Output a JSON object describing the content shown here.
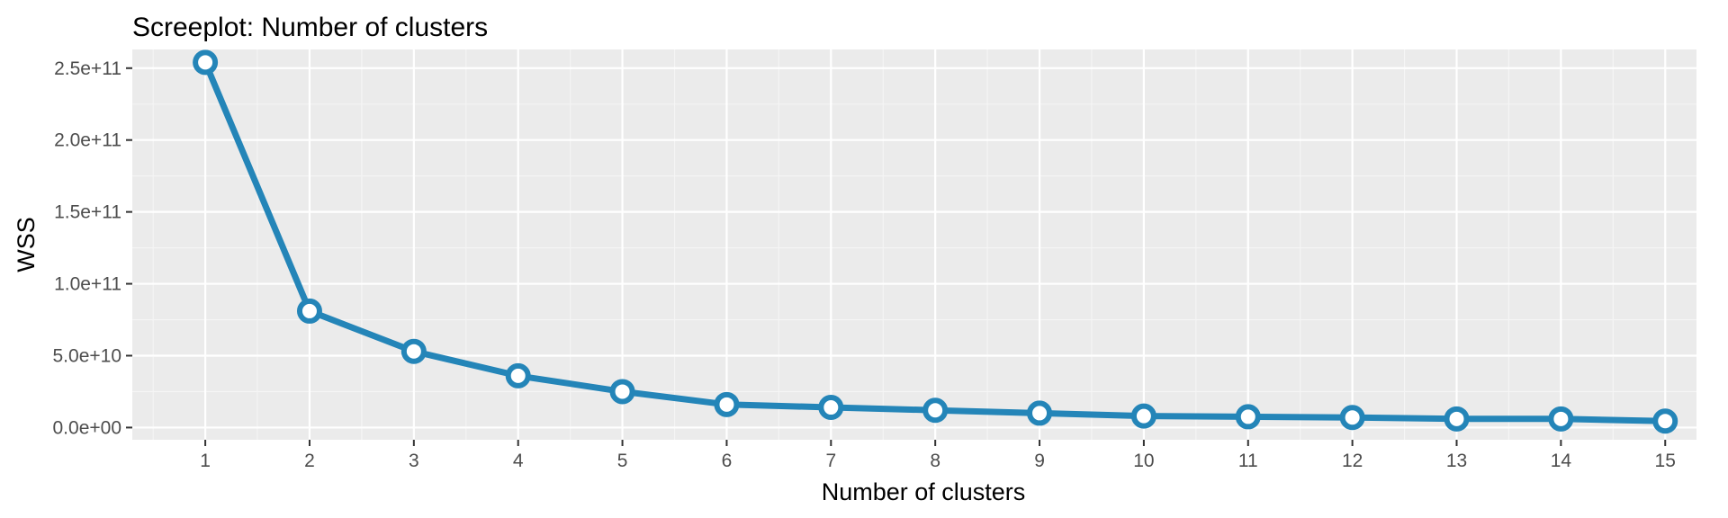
{
  "chart_data": {
    "type": "line",
    "title": "Screeplot: Number of clusters",
    "xlabel": "Number of clusters",
    "ylabel": "WSS",
    "x": [
      1,
      2,
      3,
      4,
      5,
      6,
      7,
      8,
      9,
      10,
      11,
      12,
      13,
      14,
      15
    ],
    "series": [
      {
        "values": [
          254000000000.0,
          81000000000.0,
          53000000000.0,
          36000000000.0,
          25000000000.0,
          16000000000.0,
          14000000000.0,
          12000000000.0,
          10000000000.0,
          8000000000.0,
          7500000000.0,
          7000000000.0,
          6000000000.0,
          6000000000.0,
          4500000000.0
        ]
      }
    ],
    "xlim": [
      0.3,
      15.3
    ],
    "ylim": [
      -8500000000.0,
      263000000000.0
    ],
    "x_ticks": [
      1,
      2,
      3,
      4,
      5,
      6,
      7,
      8,
      9,
      10,
      11,
      12,
      13,
      14,
      15
    ],
    "y_ticks": [
      0,
      50000000000.0,
      100000000000.0,
      150000000000.0,
      200000000000.0,
      250000000000.0
    ],
    "y_tick_labels": [
      "0.0e+00",
      "5.0e+10",
      "1.0e+11",
      "1.5e+11",
      "2.0e+11",
      "2.5e+11"
    ],
    "grid": true,
    "line_color": "#2485b8",
    "point_fill": "#ffffff",
    "panel_color": "#ebebeb"
  }
}
